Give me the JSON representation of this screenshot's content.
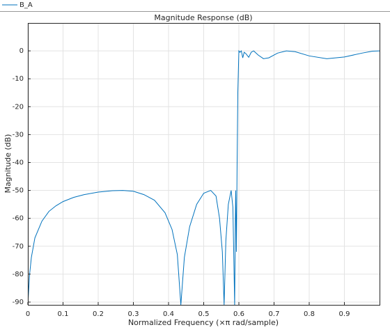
{
  "chart_data": {
    "type": "line",
    "title": "Magnitude Response (dB)",
    "x_label": "Normalized Frequency (×π rad/sample)",
    "y_label": "Magnitude (dB)",
    "x": [
      0,
      0.005,
      0.01,
      0.02,
      0.04,
      0.06,
      0.08,
      0.1,
      0.13,
      0.16,
      0.2,
      0.24,
      0.27,
      0.3,
      0.33,
      0.36,
      0.39,
      0.41,
      0.425,
      0.435,
      0.445,
      0.46,
      0.48,
      0.5,
      0.52,
      0.535,
      0.545,
      0.553,
      0.558,
      0.563,
      0.57,
      0.578,
      0.583,
      0.588,
      0.59,
      0.591,
      0.593,
      0.595,
      0.597,
      0.6,
      0.603,
      0.607,
      0.611,
      0.615,
      0.62,
      0.628,
      0.635,
      0.642,
      0.655,
      0.67,
      0.685,
      0.71,
      0.735,
      0.76,
      0.8,
      0.85,
      0.9,
      0.95,
      0.98,
      1.0
    ],
    "series": [
      {
        "name": "B_A",
        "color": "#0072bd",
        "values": [
          -91,
          -80,
          -74,
          -67,
          -61,
          -57.5,
          -55.5,
          -54,
          -52.5,
          -51.5,
          -50.6,
          -50.1,
          -50,
          -50.3,
          -51.5,
          -53.5,
          -58,
          -64,
          -73,
          -91,
          -74,
          -63,
          -55,
          -51,
          -50,
          -52,
          -60,
          -72,
          -91,
          -68,
          -55,
          -50,
          -56,
          -91,
          -60,
          -50,
          -72,
          -40,
          -15,
          0,
          -0.5,
          0,
          -2.5,
          -0.5,
          -1,
          -2.3,
          -0.5,
          0,
          -1.5,
          -2.8,
          -2.5,
          -0.8,
          0,
          -0.3,
          -1.8,
          -2.8,
          -2.2,
          -0.8,
          -0.1,
          0
        ]
      }
    ],
    "xlim": [
      0,
      1
    ],
    "ylim": [
      -91,
      10
    ],
    "xticks": [
      0,
      0.1,
      0.2,
      0.3,
      0.4,
      0.5,
      0.6,
      0.7,
      0.8,
      0.9
    ],
    "yticks": [
      0,
      -10,
      -20,
      -30,
      -40,
      -50,
      -60,
      -70,
      -80,
      -90
    ],
    "grid": true
  }
}
